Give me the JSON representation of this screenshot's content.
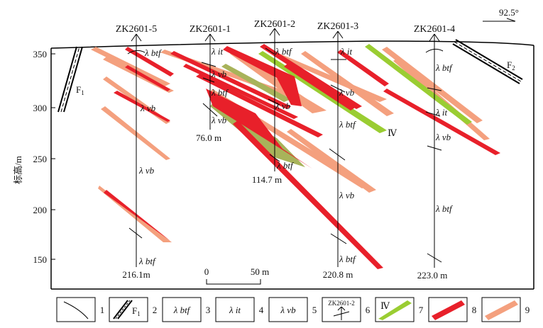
{
  "orientation": "92.5°",
  "y_axis": {
    "label": "标高/m",
    "ticks": [
      "350",
      "300",
      "250",
      "200",
      "150"
    ]
  },
  "scale_bar": {
    "start": "0",
    "end": "50 m"
  },
  "boreholes": [
    {
      "id": "ZK2601-5",
      "depth": "216.1m"
    },
    {
      "id": "ZK2601-1",
      "depth": "76.0 m"
    },
    {
      "id": "ZK2601-2",
      "depth": "114.7 m"
    },
    {
      "id": "ZK2601-3",
      "depth": "220.8 m"
    },
    {
      "id": "ZK2601-4",
      "depth": "223.0 m"
    }
  ],
  "faults": {
    "f1": {
      "label": "F",
      "subscript": "1"
    },
    "f2": {
      "label": "F",
      "subscript": "2"
    }
  },
  "ore_body_label": "Ⅳ",
  "lithology": {
    "l_btf": "λ btf",
    "l_it": "λ it",
    "l_vb": "λ vb"
  },
  "legend": [
    {
      "num": "1",
      "symbol": "contact"
    },
    {
      "num": "2",
      "symbol": "fault",
      "text": "F",
      "sub": "1"
    },
    {
      "num": "3",
      "symbol": "text",
      "text": "λ btf"
    },
    {
      "num": "4",
      "symbol": "text",
      "text": "λ it"
    },
    {
      "num": "5",
      "symbol": "text",
      "text": "λ vb"
    },
    {
      "num": "6",
      "symbol": "borehole",
      "text": "ZK2601-2"
    },
    {
      "num": "7",
      "symbol": "swatch",
      "text": "Ⅳ",
      "color": "#9acd32"
    },
    {
      "num": "8",
      "symbol": "swatch",
      "color": "#e8202a"
    },
    {
      "num": "9",
      "symbol": "swatch",
      "color": "#f4a07e"
    }
  ],
  "colors": {
    "ore_green": "#9acd32",
    "ore_red": "#e8202a",
    "ore_pink": "#f4a07e",
    "ore_olive": "#a8b35a"
  }
}
